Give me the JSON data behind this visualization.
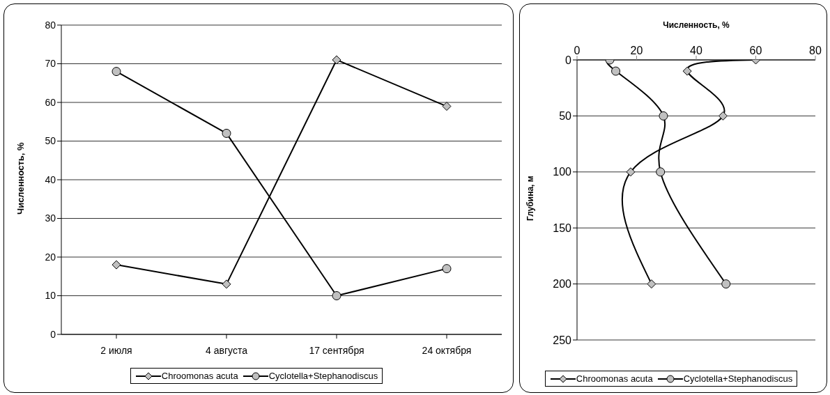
{
  "chart_data": [
    {
      "type": "line",
      "ylabel": "Численность, %",
      "categories": [
        "2 июля",
        "4 августа",
        "17 сентября",
        "24 октября"
      ],
      "ylim": [
        0,
        80
      ],
      "yticks": [
        0,
        10,
        20,
        30,
        40,
        50,
        60,
        70,
        80
      ],
      "grid": "y",
      "legend": "bottom",
      "series": [
        {
          "name": "Chroomonas acuta",
          "color": "#000000",
          "marker": "diamond",
          "values": [
            18,
            13,
            71,
            59
          ]
        },
        {
          "name": "Cyclotella+Stephanodiscus",
          "color": "#000000",
          "marker": "circle",
          "values": [
            68,
            52,
            10,
            17
          ]
        }
      ]
    },
    {
      "type": "line",
      "xlabel": "Численность, %",
      "ylabel": "Глубина, м",
      "xlim": [
        0,
        80
      ],
      "xticks": [
        0,
        20,
        40,
        60,
        80
      ],
      "ylim": [
        250,
        0
      ],
      "yticks": [
        0,
        50,
        100,
        150,
        200,
        250
      ],
      "grid": "y",
      "legend": "bottom",
      "series": [
        {
          "name": "Chroomonas acuta",
          "color": "#000000",
          "marker": "diamond",
          "x": [
            60,
            37,
            49,
            18,
            25
          ],
          "values": [
            0,
            10,
            50,
            100,
            200
          ]
        },
        {
          "name": "Cyclotella+Stephanodiscus",
          "color": "#000000",
          "marker": "circle",
          "x": [
            11,
            13,
            29,
            28,
            50
          ],
          "values": [
            0,
            10,
            50,
            100,
            200
          ]
        }
      ]
    }
  ]
}
